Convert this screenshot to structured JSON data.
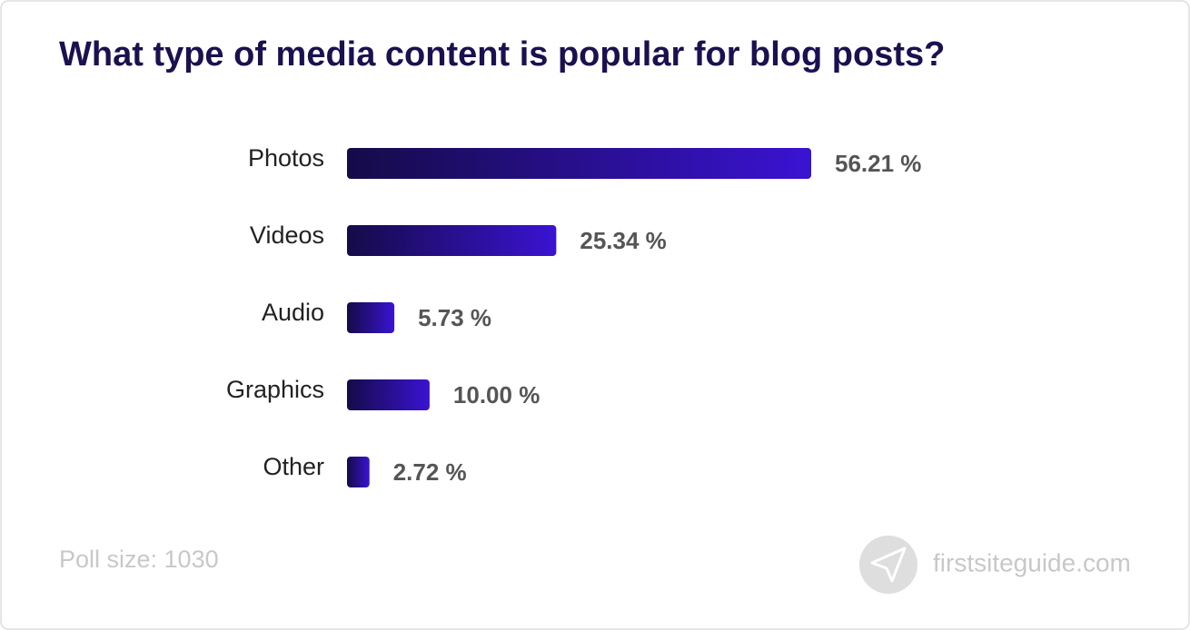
{
  "chart_data": {
    "type": "hbar",
    "title": "What type of media content is popular for blog posts?",
    "categories": [
      "Photos",
      "Videos",
      "Audio",
      "Graphics",
      "Other"
    ],
    "values": [
      56.21,
      25.34,
      5.73,
      10.0,
      2.72
    ],
    "value_labels": [
      "56.21 %",
      "25.34 %",
      "5.73 %",
      "10.00 %",
      "2.72 %"
    ],
    "color": [
      "#150b48",
      "#3a13d2"
    ],
    "note": "Poll size: 1030",
    "source": "firstsiteguide.com"
  }
}
